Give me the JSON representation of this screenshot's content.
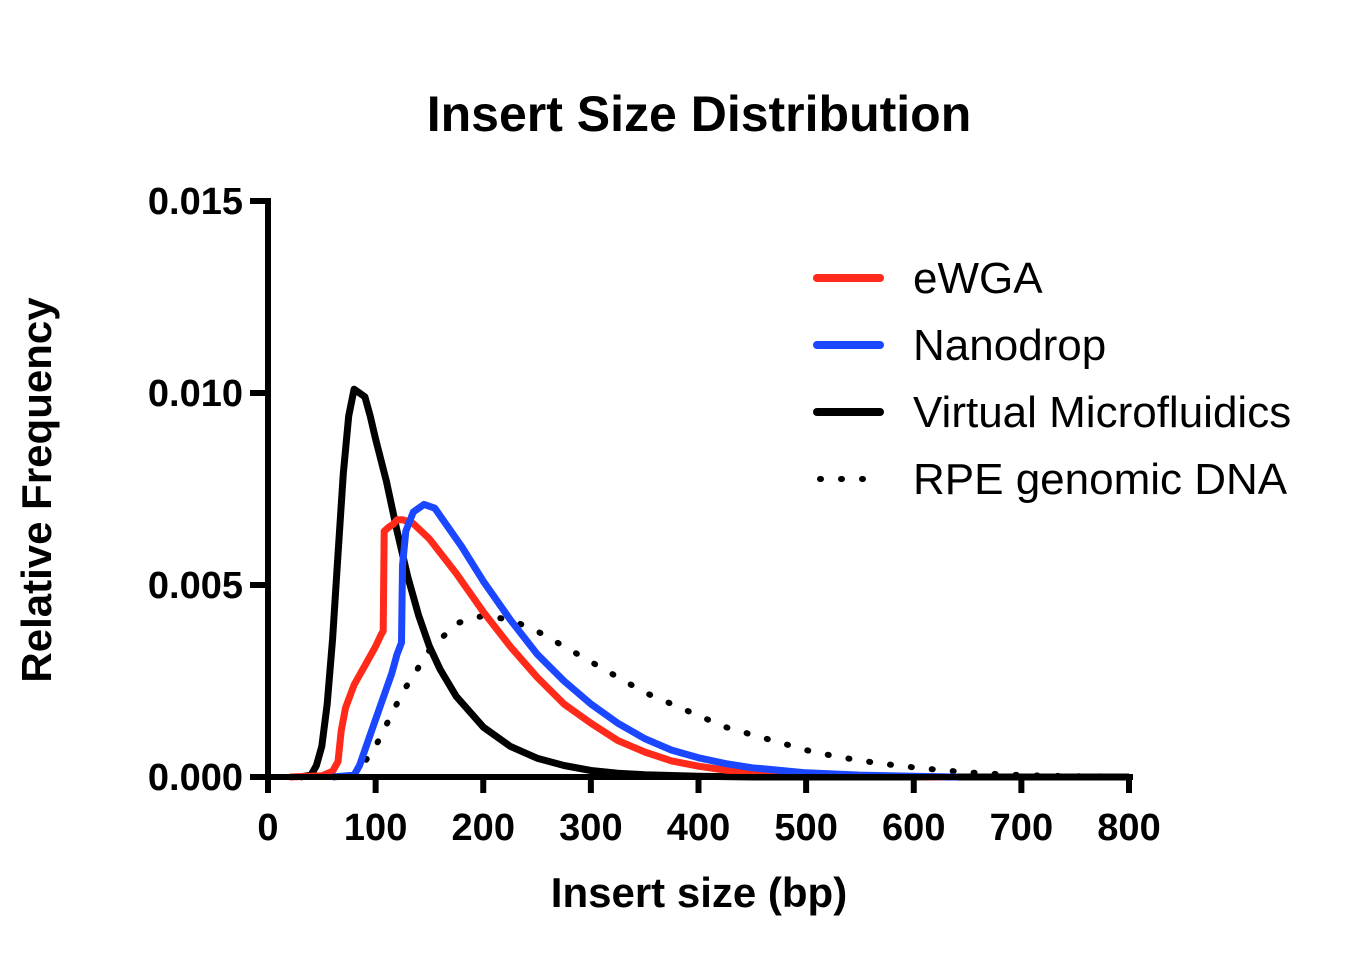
{
  "chart_data": {
    "type": "line",
    "title": "Insert Size Distribution",
    "xlabel": "Insert size (bp)",
    "ylabel": "Relative Frequency",
    "xlim": [
      0,
      800
    ],
    "ylim": [
      0,
      0.015
    ],
    "x_ticks": [
      "0",
      "100",
      "200",
      "300",
      "400",
      "500",
      "600",
      "700",
      "800"
    ],
    "y_ticks": [
      "0.000",
      "0.005",
      "0.010",
      "0.015"
    ],
    "grid": false,
    "legend_position": "top-right",
    "series": [
      {
        "name": "eWGA",
        "color": "#ff2a1a",
        "style": "solid",
        "points": [
          [
            20,
            0
          ],
          [
            50,
            3e-05
          ],
          [
            60,
            0.00015
          ],
          [
            65,
            0.0004
          ],
          [
            68,
            0.0012
          ],
          [
            72,
            0.0018
          ],
          [
            80,
            0.0024
          ],
          [
            90,
            0.0029
          ],
          [
            100,
            0.0034
          ],
          [
            105,
            0.0037
          ],
          [
            107,
            0.0038
          ],
          [
            108,
            0.0064
          ],
          [
            112,
            0.0065
          ],
          [
            117,
            0.0066
          ],
          [
            120,
            0.0067
          ],
          [
            125,
            0.0067
          ],
          [
            135,
            0.0066
          ],
          [
            150,
            0.0062
          ],
          [
            175,
            0.0053
          ],
          [
            200,
            0.0043
          ],
          [
            225,
            0.0034
          ],
          [
            250,
            0.0026
          ],
          [
            275,
            0.0019
          ],
          [
            300,
            0.0014
          ],
          [
            325,
            0.00095
          ],
          [
            350,
            0.00065
          ],
          [
            375,
            0.00042
          ],
          [
            400,
            0.00028
          ],
          [
            425,
            0.00018
          ],
          [
            450,
            0.00012
          ],
          [
            500,
            5e-05
          ],
          [
            550,
            2e-05
          ],
          [
            600,
            1e-05
          ],
          [
            630,
            0
          ]
        ]
      },
      {
        "name": "Nanodrop",
        "color": "#1a47ff",
        "style": "solid",
        "points": [
          [
            60,
            0
          ],
          [
            80,
            5e-05
          ],
          [
            85,
            0.0003
          ],
          [
            95,
            0.0011
          ],
          [
            105,
            0.0019
          ],
          [
            115,
            0.0027
          ],
          [
            120,
            0.0032
          ],
          [
            124,
            0.0035
          ],
          [
            125,
            0.0055
          ],
          [
            128,
            0.0064
          ],
          [
            135,
            0.0069
          ],
          [
            145,
            0.0071
          ],
          [
            155,
            0.007
          ],
          [
            165,
            0.0066
          ],
          [
            180,
            0.006
          ],
          [
            200,
            0.0051
          ],
          [
            225,
            0.0041
          ],
          [
            250,
            0.0032
          ],
          [
            275,
            0.0025
          ],
          [
            300,
            0.0019
          ],
          [
            325,
            0.0014
          ],
          [
            350,
            0.001
          ],
          [
            375,
            0.0007
          ],
          [
            400,
            0.0005
          ],
          [
            425,
            0.00035
          ],
          [
            450,
            0.00024
          ],
          [
            500,
            0.00011
          ],
          [
            550,
            5e-05
          ],
          [
            600,
            2e-05
          ],
          [
            640,
            0
          ]
        ]
      },
      {
        "name": "Virtual Microfluidics",
        "color": "#000000",
        "style": "solid",
        "points": [
          [
            30,
            0
          ],
          [
            40,
            5e-05
          ],
          [
            45,
            0.0003
          ],
          [
            50,
            0.0008
          ],
          [
            55,
            0.0019
          ],
          [
            60,
            0.0036
          ],
          [
            65,
            0.0058
          ],
          [
            70,
            0.0079
          ],
          [
            75,
            0.0094
          ],
          [
            80,
            0.0101
          ],
          [
            85,
            0.01
          ],
          [
            90,
            0.0099
          ],
          [
            95,
            0.0094
          ],
          [
            100,
            0.0088
          ],
          [
            110,
            0.0077
          ],
          [
            120,
            0.0064
          ],
          [
            130,
            0.0052
          ],
          [
            140,
            0.0042
          ],
          [
            150,
            0.0034
          ],
          [
            160,
            0.0028
          ],
          [
            175,
            0.0021
          ],
          [
            200,
            0.0013
          ],
          [
            225,
            0.0008
          ],
          [
            250,
            0.00049
          ],
          [
            275,
            0.0003
          ],
          [
            300,
            0.00017
          ],
          [
            325,
            0.0001
          ],
          [
            350,
            6e-05
          ],
          [
            400,
            2e-05
          ],
          [
            450,
            0
          ],
          [
            800,
            0
          ]
        ]
      },
      {
        "name": "RPE genomic DNA",
        "color": "#000000",
        "style": "dotted",
        "points": [
          [
            80,
            0
          ],
          [
            100,
            0.0008
          ],
          [
            125,
            0.0022
          ],
          [
            150,
            0.0033
          ],
          [
            175,
            0.004
          ],
          [
            200,
            0.0042
          ],
          [
            225,
            0.0041
          ],
          [
            250,
            0.0038
          ],
          [
            275,
            0.0034
          ],
          [
            300,
            0.003
          ],
          [
            325,
            0.0026
          ],
          [
            350,
            0.0022
          ],
          [
            375,
            0.0019
          ],
          [
            400,
            0.0016
          ],
          [
            425,
            0.0013
          ],
          [
            450,
            0.0011
          ],
          [
            475,
            0.0009
          ],
          [
            500,
            0.0007
          ],
          [
            525,
            0.00055
          ],
          [
            550,
            0.00043
          ],
          [
            575,
            0.00033
          ],
          [
            600,
            0.00025
          ],
          [
            625,
            0.00018
          ],
          [
            650,
            0.00012
          ],
          [
            675,
            8e-05
          ],
          [
            700,
            5e-05
          ],
          [
            725,
            3e-05
          ],
          [
            750,
            2e-05
          ],
          [
            800,
            1e-05
          ]
        ]
      }
    ]
  }
}
